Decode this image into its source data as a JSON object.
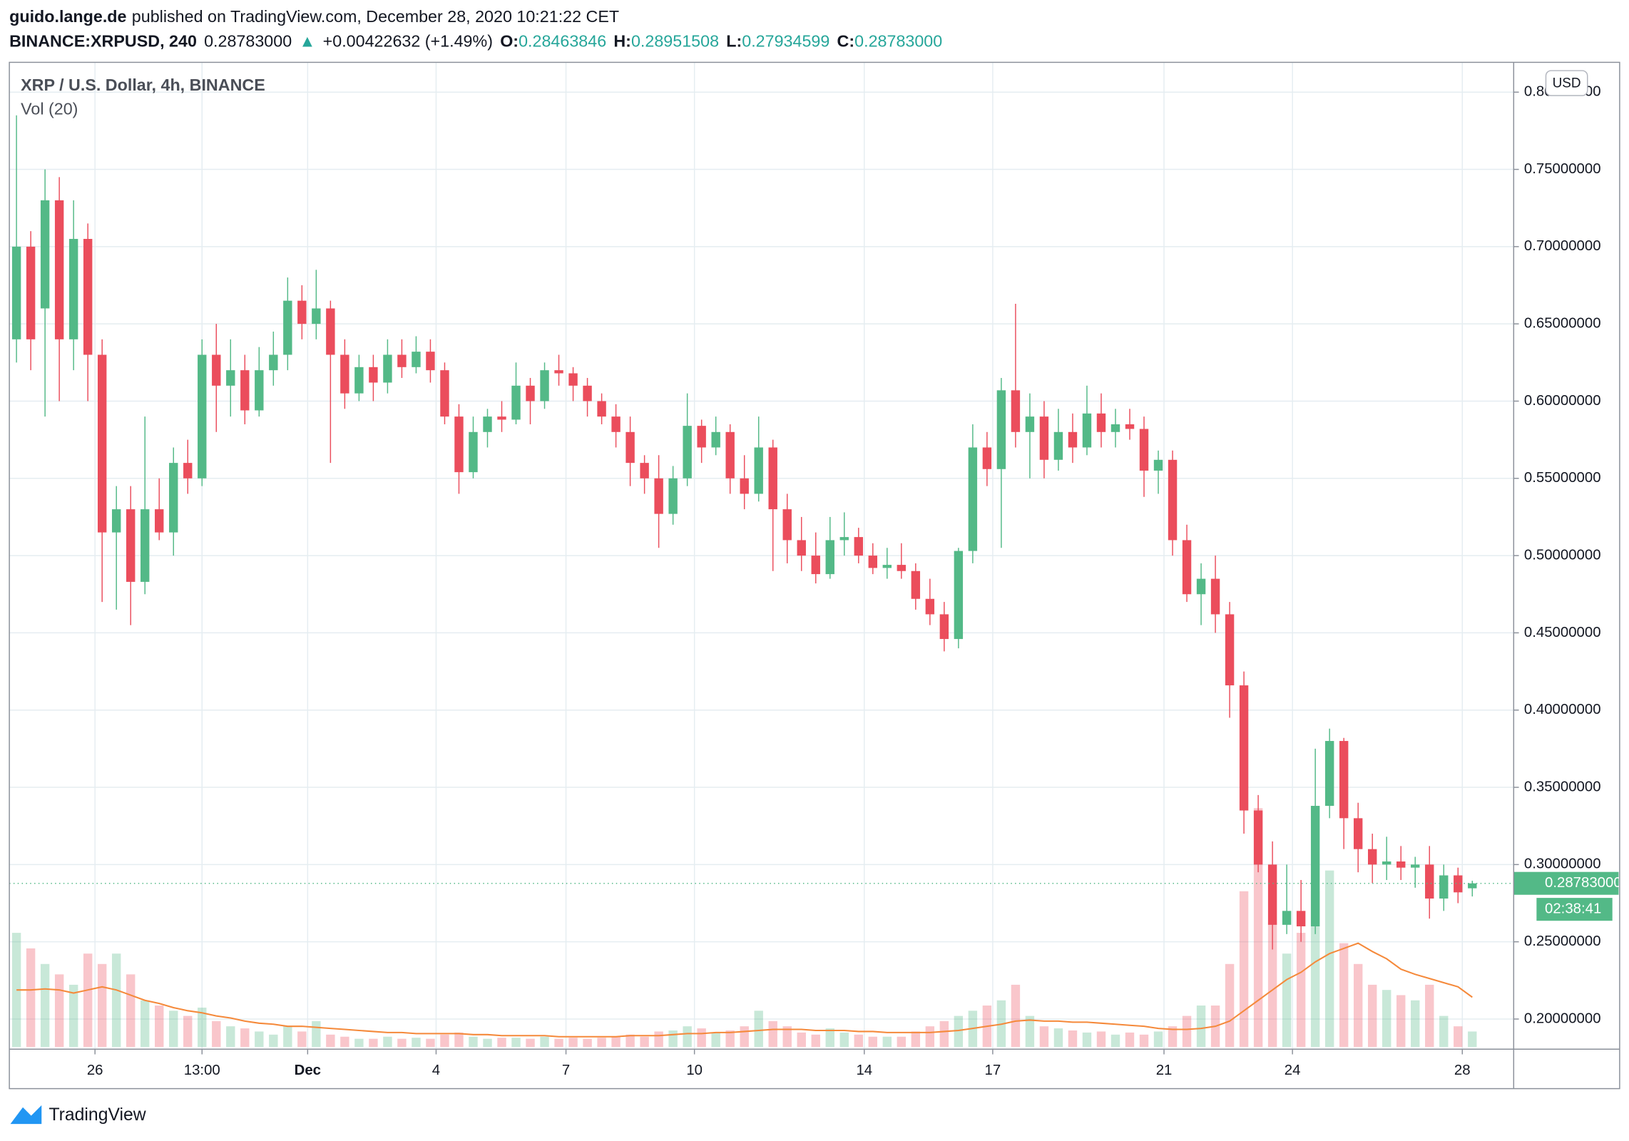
{
  "header": {
    "author": "guido.lange.de",
    "published": "published on TradingView.com, December 28, 2020 10:21:22 CET",
    "symbol": "BINANCE:XRPUSD, 240",
    "close": "0.28783000",
    "arrow": "▲",
    "change": "+0.00422632 (+1.49%)",
    "open_label": "O:",
    "open": "0.28463846",
    "high_label": "H:",
    "high": "0.28951508",
    "low_label": "L:",
    "low": "0.27934599",
    "close_label": "C:",
    "close_value": "0.28783000"
  },
  "chart_data": {
    "type": "candlestick",
    "title": "XRP / U.S. Dollar, 4h, BINANCE",
    "indicator": "Vol (20)",
    "currency": "USD",
    "countdown": "02:38:41",
    "grid": true,
    "colors": {
      "up": "#53b987",
      "down": "#eb4d5c",
      "ma": "#f5893a"
    },
    "ylim": [
      0.1805,
      0.8193
    ],
    "yticks": [
      {
        "value": 0.2,
        "label": "0.20000000"
      },
      {
        "value": 0.25,
        "label": "0.25000000"
      },
      {
        "value": 0.3,
        "label": "0.30000000"
      },
      {
        "value": 0.35,
        "label": "0.35000000"
      },
      {
        "value": 0.4,
        "label": "0.40000000"
      },
      {
        "value": 0.45,
        "label": "0.45000000"
      },
      {
        "value": 0.5,
        "label": "0.50000000"
      },
      {
        "value": 0.55,
        "label": "0.55000000"
      },
      {
        "value": 0.6,
        "label": "0.60000000"
      },
      {
        "value": 0.65,
        "label": "0.65000000"
      },
      {
        "value": 0.7,
        "label": "0.70000000"
      },
      {
        "value": 0.75,
        "label": "0.75000000"
      },
      {
        "value": 0.8,
        "label": "0.80000000"
      }
    ],
    "xlim": [
      -0.5,
      104.9
    ],
    "xticks": [
      {
        "value": 5.5,
        "label": "26"
      },
      {
        "value": 13.0,
        "label": "13:00"
      },
      {
        "value": 20.4,
        "label": "Dec"
      },
      {
        "value": 29.4,
        "label": "4"
      },
      {
        "value": 38.5,
        "label": "7"
      },
      {
        "value": 47.5,
        "label": "10"
      },
      {
        "value": 59.4,
        "label": "14"
      },
      {
        "value": 68.4,
        "label": "17"
      },
      {
        "value": 80.4,
        "label": "21"
      },
      {
        "value": 89.4,
        "label": "24"
      },
      {
        "value": 101.3,
        "label": "28"
      }
    ],
    "volume_lim": [
      0,
      250
    ],
    "candles": [
      [
        0.64,
        0.785,
        0.625,
        0.7
      ],
      [
        0.7,
        0.71,
        0.62,
        0.64
      ],
      [
        0.66,
        0.75,
        0.59,
        0.73
      ],
      [
        0.73,
        0.745,
        0.6,
        0.64
      ],
      [
        0.64,
        0.73,
        0.62,
        0.705
      ],
      [
        0.705,
        0.715,
        0.6,
        0.63
      ],
      [
        0.63,
        0.64,
        0.47,
        0.515
      ],
      [
        0.515,
        0.545,
        0.465,
        0.53
      ],
      [
        0.53,
        0.545,
        0.455,
        0.483
      ],
      [
        0.483,
        0.59,
        0.475,
        0.53
      ],
      [
        0.53,
        0.55,
        0.51,
        0.515
      ],
      [
        0.515,
        0.57,
        0.5,
        0.56
      ],
      [
        0.56,
        0.575,
        0.54,
        0.55
      ],
      [
        0.55,
        0.64,
        0.545,
        0.63
      ],
      [
        0.63,
        0.65,
        0.58,
        0.61
      ],
      [
        0.61,
        0.64,
        0.59,
        0.62
      ],
      [
        0.62,
        0.63,
        0.585,
        0.594
      ],
      [
        0.594,
        0.635,
        0.59,
        0.62
      ],
      [
        0.62,
        0.645,
        0.61,
        0.63
      ],
      [
        0.63,
        0.68,
        0.62,
        0.665
      ],
      [
        0.665,
        0.675,
        0.64,
        0.65
      ],
      [
        0.65,
        0.685,
        0.64,
        0.66
      ],
      [
        0.66,
        0.665,
        0.56,
        0.63
      ],
      [
        0.63,
        0.64,
        0.595,
        0.605
      ],
      [
        0.605,
        0.63,
        0.6,
        0.622
      ],
      [
        0.622,
        0.63,
        0.6,
        0.612
      ],
      [
        0.612,
        0.64,
        0.605,
        0.63
      ],
      [
        0.63,
        0.64,
        0.615,
        0.622
      ],
      [
        0.622,
        0.642,
        0.618,
        0.632
      ],
      [
        0.632,
        0.64,
        0.612,
        0.62
      ],
      [
        0.62,
        0.625,
        0.585,
        0.59
      ],
      [
        0.59,
        0.598,
        0.54,
        0.554
      ],
      [
        0.554,
        0.59,
        0.55,
        0.58
      ],
      [
        0.58,
        0.595,
        0.57,
        0.59
      ],
      [
        0.59,
        0.6,
        0.58,
        0.588
      ],
      [
        0.588,
        0.625,
        0.585,
        0.61
      ],
      [
        0.61,
        0.615,
        0.585,
        0.6
      ],
      [
        0.6,
        0.625,
        0.595,
        0.62
      ],
      [
        0.62,
        0.63,
        0.61,
        0.618
      ],
      [
        0.618,
        0.622,
        0.6,
        0.61
      ],
      [
        0.61,
        0.615,
        0.59,
        0.6
      ],
      [
        0.6,
        0.605,
        0.585,
        0.59
      ],
      [
        0.59,
        0.598,
        0.57,
        0.58
      ],
      [
        0.58,
        0.59,
        0.545,
        0.56
      ],
      [
        0.56,
        0.565,
        0.54,
        0.55
      ],
      [
        0.55,
        0.565,
        0.505,
        0.527
      ],
      [
        0.527,
        0.558,
        0.52,
        0.55
      ],
      [
        0.55,
        0.605,
        0.545,
        0.584
      ],
      [
        0.584,
        0.588,
        0.56,
        0.57
      ],
      [
        0.57,
        0.59,
        0.565,
        0.58
      ],
      [
        0.58,
        0.585,
        0.54,
        0.55
      ],
      [
        0.55,
        0.565,
        0.53,
        0.54
      ],
      [
        0.54,
        0.59,
        0.535,
        0.57
      ],
      [
        0.57,
        0.575,
        0.49,
        0.53
      ],
      [
        0.53,
        0.54,
        0.495,
        0.51
      ],
      [
        0.51,
        0.525,
        0.49,
        0.5
      ],
      [
        0.5,
        0.515,
        0.482,
        0.488
      ],
      [
        0.488,
        0.525,
        0.485,
        0.51
      ],
      [
        0.51,
        0.528,
        0.5,
        0.512
      ],
      [
        0.512,
        0.518,
        0.495,
        0.5
      ],
      [
        0.5,
        0.508,
        0.488,
        0.492
      ],
      [
        0.492,
        0.505,
        0.485,
        0.494
      ],
      [
        0.494,
        0.508,
        0.485,
        0.49
      ],
      [
        0.49,
        0.495,
        0.465,
        0.472
      ],
      [
        0.472,
        0.485,
        0.455,
        0.462
      ],
      [
        0.462,
        0.47,
        0.438,
        0.446
      ],
      [
        0.446,
        0.505,
        0.44,
        0.503
      ],
      [
        0.503,
        0.585,
        0.495,
        0.57
      ],
      [
        0.57,
        0.58,
        0.545,
        0.556
      ],
      [
        0.556,
        0.615,
        0.505,
        0.607
      ],
      [
        0.607,
        0.663,
        0.57,
        0.58
      ],
      [
        0.58,
        0.605,
        0.55,
        0.59
      ],
      [
        0.59,
        0.6,
        0.55,
        0.562
      ],
      [
        0.562,
        0.595,
        0.555,
        0.58
      ],
      [
        0.58,
        0.592,
        0.56,
        0.57
      ],
      [
        0.57,
        0.61,
        0.565,
        0.592
      ],
      [
        0.592,
        0.605,
        0.57,
        0.58
      ],
      [
        0.58,
        0.595,
        0.57,
        0.585
      ],
      [
        0.585,
        0.595,
        0.575,
        0.582
      ],
      [
        0.582,
        0.59,
        0.538,
        0.555
      ],
      [
        0.555,
        0.568,
        0.54,
        0.562
      ],
      [
        0.562,
        0.568,
        0.5,
        0.51
      ],
      [
        0.51,
        0.52,
        0.47,
        0.475
      ],
      [
        0.475,
        0.495,
        0.455,
        0.485
      ],
      [
        0.485,
        0.5,
        0.45,
        0.462
      ],
      [
        0.462,
        0.47,
        0.395,
        0.416
      ],
      [
        0.416,
        0.425,
        0.32,
        0.335
      ],
      [
        0.335,
        0.345,
        0.295,
        0.3
      ],
      [
        0.3,
        0.315,
        0.245,
        0.261
      ],
      [
        0.261,
        0.3,
        0.255,
        0.27
      ],
      [
        0.27,
        0.29,
        0.25,
        0.26
      ],
      [
        0.26,
        0.375,
        0.255,
        0.338
      ],
      [
        0.338,
        0.388,
        0.33,
        0.38
      ],
      [
        0.38,
        0.382,
        0.31,
        0.33
      ],
      [
        0.33,
        0.34,
        0.295,
        0.31
      ],
      [
        0.31,
        0.32,
        0.288,
        0.3
      ],
      [
        0.3,
        0.318,
        0.29,
        0.302
      ],
      [
        0.302,
        0.312,
        0.29,
        0.298
      ],
      [
        0.298,
        0.305,
        0.285,
        0.3
      ],
      [
        0.3,
        0.312,
        0.265,
        0.278
      ],
      [
        0.278,
        0.3,
        0.27,
        0.293
      ],
      [
        0.293,
        0.298,
        0.275,
        0.282
      ],
      [
        0.28463846,
        0.28951508,
        0.27934599,
        0.28783
      ]
    ],
    "volume": [
      110,
      95,
      80,
      70,
      60,
      90,
      80,
      90,
      70,
      45,
      40,
      35,
      30,
      38,
      25,
      20,
      18,
      15,
      12,
      20,
      15,
      25,
      12,
      10,
      8,
      8,
      10,
      8,
      9,
      8,
      12,
      14,
      10,
      8,
      9,
      9,
      8,
      10,
      8,
      9,
      8,
      9,
      10,
      12,
      10,
      15,
      16,
      20,
      18,
      14,
      16,
      20,
      35,
      25,
      20,
      14,
      12,
      18,
      14,
      12,
      10,
      10,
      10,
      15,
      20,
      25,
      30,
      35,
      40,
      45,
      60,
      30,
      20,
      18,
      16,
      14,
      15,
      12,
      14,
      12,
      15,
      20,
      30,
      40,
      40,
      80,
      150,
      230,
      120,
      90,
      110,
      150,
      170,
      100,
      80,
      60,
      55,
      50,
      45,
      60,
      30,
      20,
      15
    ],
    "volume_ma": [
      55,
      55,
      56,
      55,
      52,
      55,
      58,
      55,
      50,
      45,
      42,
      38,
      35,
      33,
      30,
      28,
      25,
      23,
      22,
      20,
      20,
      19,
      18,
      17,
      16,
      15,
      14,
      14,
      13,
      13,
      13,
      13,
      12,
      12,
      11,
      11,
      11,
      11,
      10,
      10,
      10,
      10,
      10,
      11,
      11,
      11,
      12,
      13,
      13,
      14,
      14,
      15,
      16,
      17,
      17,
      17,
      16,
      16,
      16,
      15,
      15,
      14,
      14,
      14,
      14,
      15,
      16,
      18,
      20,
      22,
      25,
      26,
      25,
      25,
      24,
      24,
      23,
      22,
      21,
      20,
      18,
      17,
      17,
      18,
      20,
      25,
      35,
      45,
      55,
      65,
      72,
      82,
      90,
      95,
      100,
      92,
      85,
      75,
      70,
      66,
      62,
      58,
      48
    ]
  },
  "footer": {
    "brand": "TradingView"
  }
}
